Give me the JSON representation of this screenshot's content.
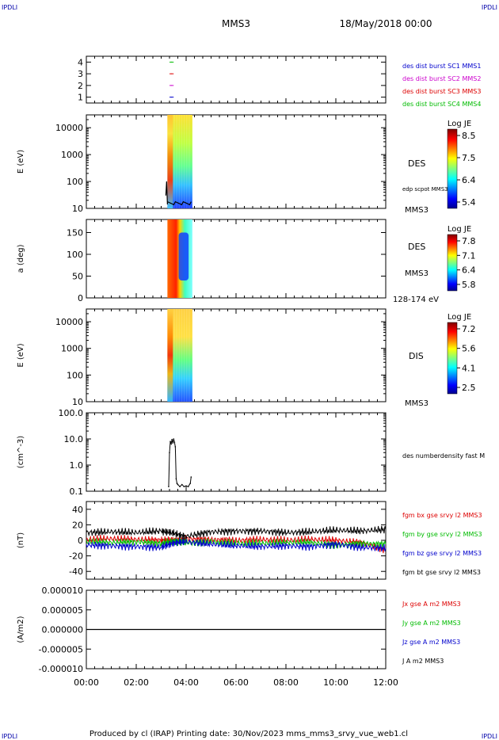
{
  "header": {
    "corner_tl": "IPDLI",
    "corner_tr": "IPDLI",
    "corner_bl": "IPDLI",
    "corner_br": "IPDLI",
    "spacecraft": "MMS3",
    "date": "18/May/2018 00:00"
  },
  "footer": {
    "text": "Produced by cl (IRAP)   Printing date: 30/Nov/2023   mms_mms3_srvy_vue_web1.cl"
  },
  "chart_data": [
    {
      "type": "scatter",
      "name": "burst availability",
      "ylim": [
        0.5,
        4.5
      ],
      "yticks": [
        "1",
        "2",
        "3",
        "4"
      ],
      "legend": [
        {
          "label": "des dist burst SC1 MMS1",
          "color": "#0000cc"
        },
        {
          "label": "des dist burst SC2 MMS2",
          "color": "#cc00cc"
        },
        {
          "label": "des dist burst SC3 MMS3",
          "color": "#dd0000"
        },
        {
          "label": "des dist burst SC4 MMS4",
          "color": "#00bb00"
        }
      ],
      "segments": [
        {
          "level": 1,
          "start": "03:20",
          "end": "03:30",
          "color": "#0000cc"
        },
        {
          "level": 2,
          "start": "03:20",
          "end": "03:30",
          "color": "#cc00cc"
        },
        {
          "level": 3,
          "start": "03:20",
          "end": "03:30",
          "color": "#dd0000"
        },
        {
          "level": 4,
          "start": "03:20",
          "end": "03:30",
          "color": "#00bb00"
        }
      ]
    },
    {
      "type": "heatmap",
      "name": "DES energy spectrogram",
      "ylabel": "E (eV)",
      "scale": "log",
      "ylim": [
        10,
        30000
      ],
      "yticks": [
        "10",
        "100",
        "1000",
        "10000"
      ],
      "data_start": "03:15",
      "data_end": "04:15",
      "label": "DES",
      "overlay_label": "edp scpot MMS3",
      "corner_label": "MMS3",
      "colorbar": {
        "title": "Log JE",
        "max": "8.5",
        "ticks": [
          "8.5",
          "7.5",
          "6.4",
          "5.4"
        ]
      }
    },
    {
      "type": "heatmap",
      "name": "DES pitch angle",
      "ylabel": "a (deg)",
      "ylim": [
        0,
        180
      ],
      "yticks": [
        "0",
        "50",
        "100",
        "150"
      ],
      "data_start": "03:15",
      "data_end": "04:15",
      "label": "DES",
      "label2": "MMS3",
      "corner_label": "128-174 eV",
      "colorbar": {
        "title": "Log JE",
        "ticks": [
          "7.8",
          "7.1",
          "6.4",
          "5.8"
        ]
      }
    },
    {
      "type": "heatmap",
      "name": "DIS energy spectrogram",
      "ylabel": "E (eV)",
      "scale": "log",
      "ylim": [
        10,
        30000
      ],
      "yticks": [
        "10",
        "100",
        "1000",
        "10000"
      ],
      "data_start": "03:15",
      "data_end": "04:15",
      "label": "DIS",
      "corner_label": "MMS3",
      "colorbar": {
        "title": "Log JE",
        "ticks": [
          "7.2",
          "5.6",
          "4.1",
          "2.5"
        ]
      }
    },
    {
      "type": "line",
      "name": "density",
      "ylabel": "(cm^-3)",
      "scale": "log",
      "ylim": [
        0.1,
        100
      ],
      "yticks": [
        "0.1",
        "1.0",
        "10.0",
        "100.0"
      ],
      "legend": [
        {
          "label": "des numberdensity fast M",
          "color": "#000000"
        }
      ],
      "x": [
        "03:18",
        "03:20",
        "03:22",
        "03:24",
        "03:26",
        "03:28",
        "03:30",
        "03:32",
        "03:34",
        "03:36",
        "03:38",
        "03:40",
        "03:45",
        "03:50",
        "03:55",
        "04:00",
        "04:05",
        "04:10",
        "04:12"
      ],
      "y": [
        0.15,
        3.0,
        8.0,
        6.5,
        9.5,
        7.0,
        10.0,
        7.5,
        5.0,
        0.3,
        0.2,
        0.18,
        0.15,
        0.18,
        0.15,
        0.16,
        0.15,
        0.2,
        0.35
      ]
    },
    {
      "type": "line",
      "name": "magnetic field",
      "ylabel": "(nT)",
      "ylim": [
        -50,
        50
      ],
      "yticks": [
        "-40",
        "-20",
        "0",
        "20",
        "40"
      ],
      "legend": [
        {
          "label": "fgm bx gse srvy l2 MMS3",
          "color": "#dd0000"
        },
        {
          "label": "fgm by gse srvy l2 MMS3",
          "color": "#00bb00"
        },
        {
          "label": "fgm bz gse srvy l2 MMS3",
          "color": "#0000cc"
        },
        {
          "label": "fgm bt gse srvy l2 MMS3",
          "color": "#000000"
        }
      ],
      "series": [
        {
          "name": "fgm bt gse srvy l2 MMS3",
          "color": "#000000",
          "x": [
            "00:00",
            "01:00",
            "02:00",
            "03:00",
            "03:30",
            "04:00",
            "05:00",
            "06:00",
            "07:00",
            "08:00",
            "09:00",
            "10:00",
            "11:00",
            "12:00"
          ],
          "values": [
            10,
            11,
            10,
            12,
            9,
            5,
            11,
            12,
            12,
            10,
            11,
            13,
            12,
            14
          ]
        },
        {
          "name": "fgm bx gse srvy l2 MMS3",
          "color": "#dd0000",
          "x": [
            "00:00",
            "01:00",
            "02:00",
            "03:00",
            "03:30",
            "04:00",
            "05:00",
            "06:00",
            "07:00",
            "08:00",
            "09:00",
            "10:00",
            "11:00",
            "12:00"
          ],
          "values": [
            1,
            2,
            1,
            0,
            0,
            2,
            1,
            0,
            1,
            0,
            1,
            0,
            -3,
            -12
          ]
        },
        {
          "name": "fgm by gse srvy l2 MMS3",
          "color": "#00bb00",
          "x": [
            "00:00",
            "01:00",
            "02:00",
            "03:00",
            "03:30",
            "04:00",
            "05:00",
            "06:00",
            "07:00",
            "08:00",
            "09:00",
            "10:00",
            "11:00",
            "12:00"
          ],
          "values": [
            -2,
            -3,
            -2,
            -4,
            -1,
            -3,
            -2,
            -4,
            -4,
            -3,
            -3,
            -6,
            -4,
            -5
          ]
        },
        {
          "name": "fgm bz gse srvy l2 MMS3",
          "color": "#0000cc",
          "x": [
            "00:00",
            "01:00",
            "02:00",
            "03:00",
            "03:30",
            "04:00",
            "05:00",
            "06:00",
            "07:00",
            "08:00",
            "09:00",
            "10:00",
            "11:00",
            "12:00"
          ],
          "values": [
            -6,
            -7,
            -8,
            -9,
            -3,
            -2,
            -5,
            -7,
            -8,
            -7,
            -8,
            -5,
            -9,
            -10
          ]
        }
      ]
    },
    {
      "type": "line",
      "name": "current density",
      "ylabel": "(A/m2)",
      "ylim": [
        -1e-05,
        1e-05
      ],
      "yticks": [
        "-0.000010",
        "-0.000005",
        "0.000000",
        "0.000005",
        "0.000010"
      ],
      "legend": [
        {
          "label": "Jx gse A m2 MMS3",
          "color": "#dd0000"
        },
        {
          "label": "Jy gse A m2 MMS3",
          "color": "#00bb00"
        },
        {
          "label": "Jz gse A m2 MMS3",
          "color": "#0000cc"
        },
        {
          "label": "J A m2 MMS3",
          "color": "#000000"
        }
      ],
      "series": [
        {
          "name": "J A m2 MMS3",
          "color": "#000000",
          "x": [
            "00:00",
            "12:00"
          ],
          "values": [
            0,
            0
          ]
        }
      ]
    }
  ],
  "time_axis": {
    "xlim": [
      "00:00",
      "12:00"
    ],
    "ticks": [
      "00:00",
      "02:00",
      "04:00",
      "06:00",
      "08:00",
      "10:00",
      "12:00"
    ]
  }
}
